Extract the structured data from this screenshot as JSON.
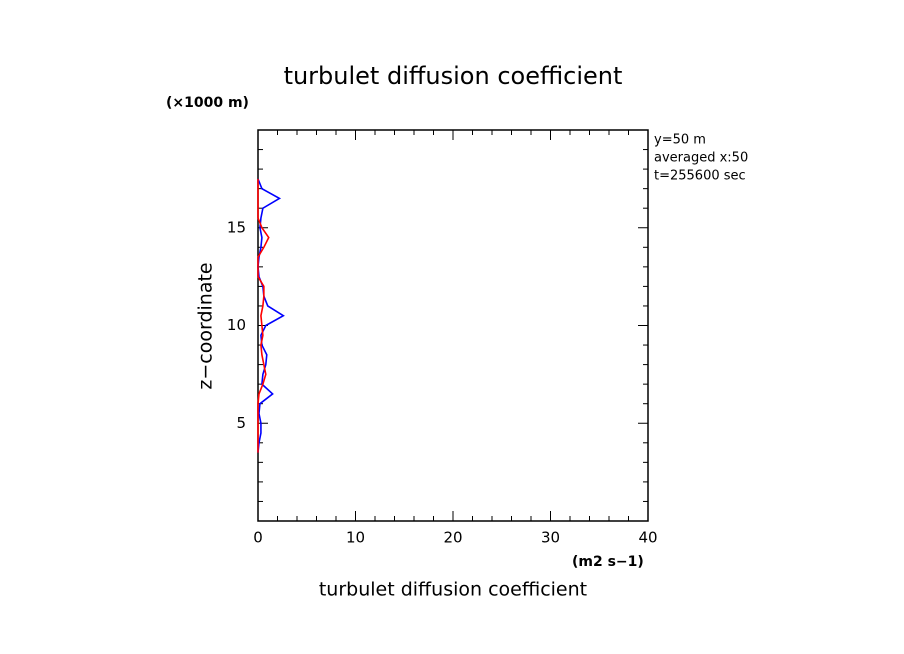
{
  "chart_data": {
    "type": "profile",
    "title": "turbulet diffusion coefficient",
    "y_unit": "(×1000 m)",
    "y_label": "z−coordinate",
    "x_unit": "(m2 s−1)",
    "x_label": "turbulet diffusion coefficient",
    "annotations": [
      "y=50 m",
      "averaged  x:50",
      "t=255600 sec"
    ],
    "y": [
      3.5,
      4,
      4.5,
      5,
      5.5,
      6,
      6.5,
      7,
      7.5,
      8,
      8.5,
      9,
      9.5,
      10,
      10.5,
      11,
      11.5,
      12,
      12.5,
      13,
      13.5,
      14,
      14.5,
      15,
      15.5,
      16,
      16.5,
      17,
      17.5
    ],
    "series": [
      {
        "color": "#0000ff",
        "values": [
          0,
          0.1,
          0.3,
          0.3,
          0.1,
          0.2,
          1.5,
          0.4,
          0.5,
          0.8,
          0.9,
          0.4,
          0.3,
          0.8,
          2.6,
          1.0,
          0.6,
          0.5,
          0.1,
          0,
          0.1,
          0.3,
          0.4,
          0.2,
          0.3,
          0.5,
          2.2,
          0.4,
          0
        ]
      },
      {
        "color": "#ff0000",
        "values": [
          0,
          0,
          0,
          0,
          0,
          0,
          0.1,
          0.5,
          0.8,
          0.6,
          0.4,
          0.3,
          0.5,
          0.4,
          0.3,
          0.5,
          0.6,
          0.6,
          0,
          0,
          0,
          0.6,
          1.1,
          0.4,
          0,
          0,
          0,
          0,
          0
        ]
      }
    ],
    "xlim": [
      0,
      40
    ],
    "xticks": [
      0,
      10,
      20,
      30,
      40
    ],
    "ylim": [
      0,
      20
    ],
    "yticks": [
      5,
      10,
      15
    ]
  }
}
